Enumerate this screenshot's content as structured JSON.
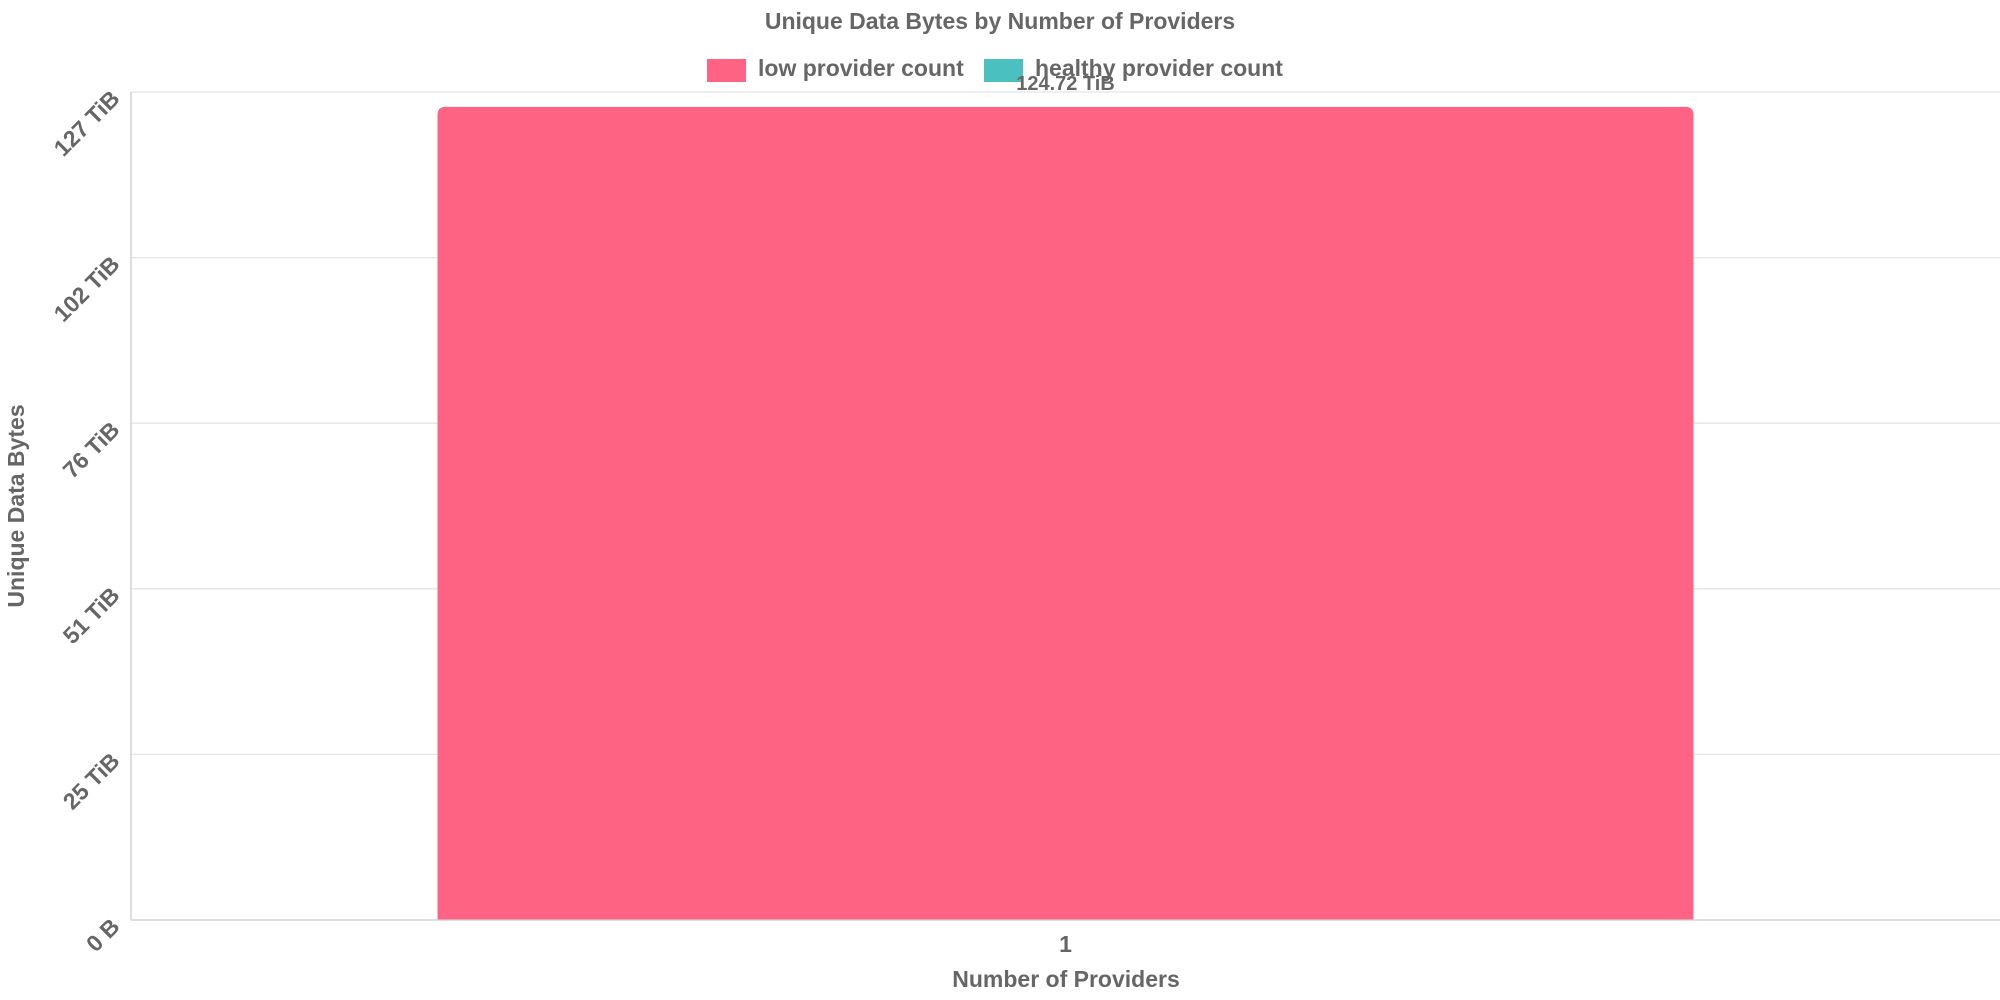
{
  "chart_data": {
    "type": "bar",
    "title": "Unique Data Bytes by Number of Providers",
    "xlabel": "Number of Providers",
    "ylabel": "Unique Data Bytes",
    "categories": [
      "1"
    ],
    "series": [
      {
        "name": "low provider count",
        "color": "#ff6384",
        "values": [
          124.72
        ]
      },
      {
        "name": "healthy provider count",
        "color": "#4bc0c0",
        "values": [
          0
        ]
      }
    ],
    "value_unit": "TiB",
    "data_labels": [
      "124.72 TiB"
    ],
    "y_ticks": [
      {
        "value": 0,
        "label": "0 B"
      },
      {
        "value": 25.4,
        "label": "25 TiB"
      },
      {
        "value": 50.8,
        "label": "51 TiB"
      },
      {
        "value": 76.2,
        "label": "76 TiB"
      },
      {
        "value": 101.6,
        "label": "102 TiB"
      },
      {
        "value": 127,
        "label": "127 TiB"
      }
    ],
    "ylim": [
      0,
      127
    ],
    "grid": true,
    "legend_position": "top-center"
  }
}
